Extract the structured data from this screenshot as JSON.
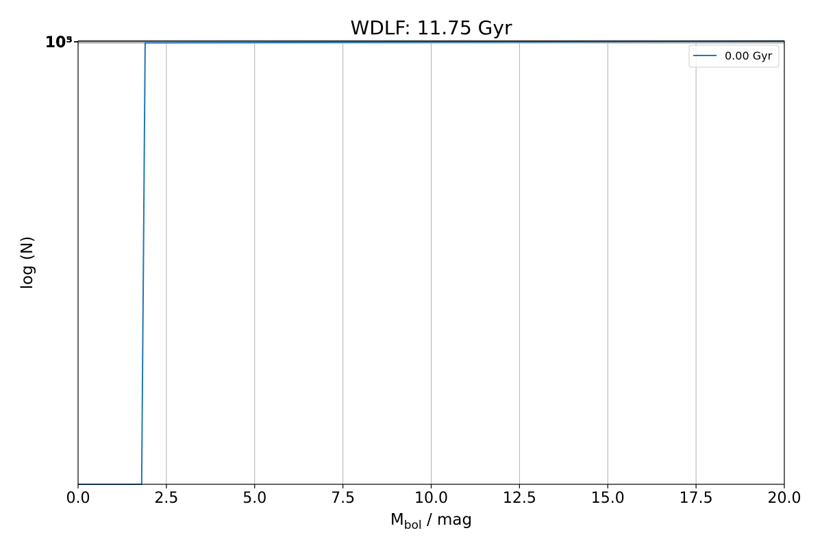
{
  "chart_data": {
    "type": "line",
    "title": "WDLF: 11.75 Gyr",
    "xlabel": {
      "main": "M",
      "sub": "bol",
      "rest": " / mag"
    },
    "ylabel": "log (N)",
    "xlim": [
      0,
      20
    ],
    "xticks": [
      "0.0",
      "2.5",
      "5.0",
      "7.5",
      "10.0",
      "12.5",
      "15.0",
      "17.5",
      "20.0"
    ],
    "yscale": "log",
    "yticks_overlapping": [
      "10³",
      "10⁵"
    ],
    "grid": "x-only",
    "legend_position": "top-right",
    "series": [
      {
        "name": "0.00 Gyr",
        "color": "#1f77b4",
        "x": [
          0,
          1.8,
          1.9,
          20
        ],
        "y_fraction_of_axis": [
          0,
          0,
          0.996,
          1.0
        ]
      }
    ]
  }
}
